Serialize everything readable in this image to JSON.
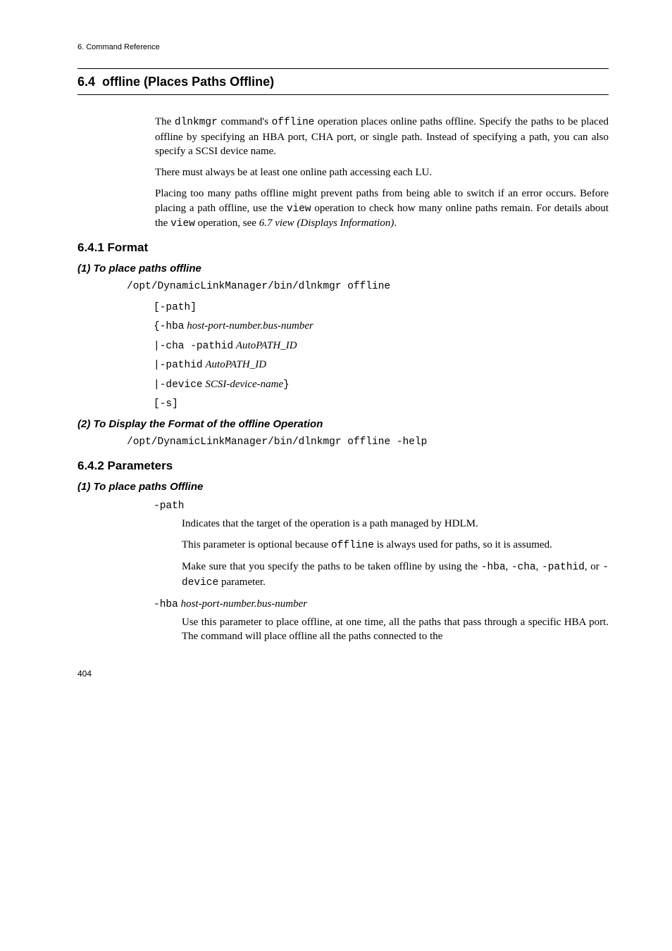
{
  "running_head": "6.  Command Reference",
  "title_number": "6.4",
  "title_text": "offline (Places Paths Offline)",
  "intro": {
    "p1_a": "The ",
    "p1_cmd1": "dlnkmgr",
    "p1_b": " command's ",
    "p1_cmd2": "offline",
    "p1_c": " operation places online paths offline. Specify the paths to be placed offline by specifying an HBA port, CHA port, or single path. Instead of specifying a path, you can also specify a SCSI device name.",
    "p2": "There must always be at least one online path accessing each LU.",
    "p3_a": "Placing too many paths offline might prevent paths from being able to switch if an error occurs. Before placing a path offline, use the ",
    "p3_cmd1": "view",
    "p3_b": " operation to check how many online paths remain. For details about the ",
    "p3_cmd2": "view",
    "p3_c": " operation, see ",
    "p3_ref": "6.7  view (Displays Information)",
    "p3_d": "."
  },
  "sec_format_title": "6.4.1  Format",
  "sub1_title": "(1)  To place paths offline",
  "cmd1": "/opt/DynamicLinkManager/bin/dlnkmgr offline",
  "opts": {
    "o1": "[-path]",
    "o2_a": "{-hba",
    "o2_b": "host-port-number.bus-number",
    "o3_a": "|-cha -pathid",
    "o3_b": "AutoPATH_ID",
    "o4_a": "|-pathid",
    "o4_b": "AutoPATH_ID",
    "o5_a": "|-device",
    "o5_b": "SCSI-device-name",
    "o5_c": "}",
    "o6": "[-s]"
  },
  "sub2_title": "(2)  To Display the Format of the offline Operation",
  "cmd2": "/opt/DynamicLinkManager/bin/dlnkmgr offline -help",
  "sec_params_title": "6.4.2  Parameters",
  "sub3_title": "(1)  To place paths Offline",
  "params": {
    "path_term": "-path",
    "path_d1": "Indicates that the target of the operation is a path managed by HDLM.",
    "path_d2_a": "This parameter is optional because ",
    "path_d2_cmd": "offline",
    "path_d2_b": " is always used for paths, so it is assumed.",
    "path_d3_a": "Make sure that you specify the paths to be taken offline by using the ",
    "path_d3_o1": "-hba",
    "path_d3_b": ", ",
    "path_d3_o2": "-cha",
    "path_d3_c": ", ",
    "path_d3_o3": "-pathid",
    "path_d3_d": ", or ",
    "path_d3_o4": "-device",
    "path_d3_e": " parameter.",
    "hba_term_a": "-hba",
    "hba_term_b": "host-port-number.bus-number",
    "hba_d1": "Use this parameter to place offline, at one time, all the paths that pass through a specific HBA port. The command will place offline all the paths connected to the"
  },
  "page_number": "404"
}
